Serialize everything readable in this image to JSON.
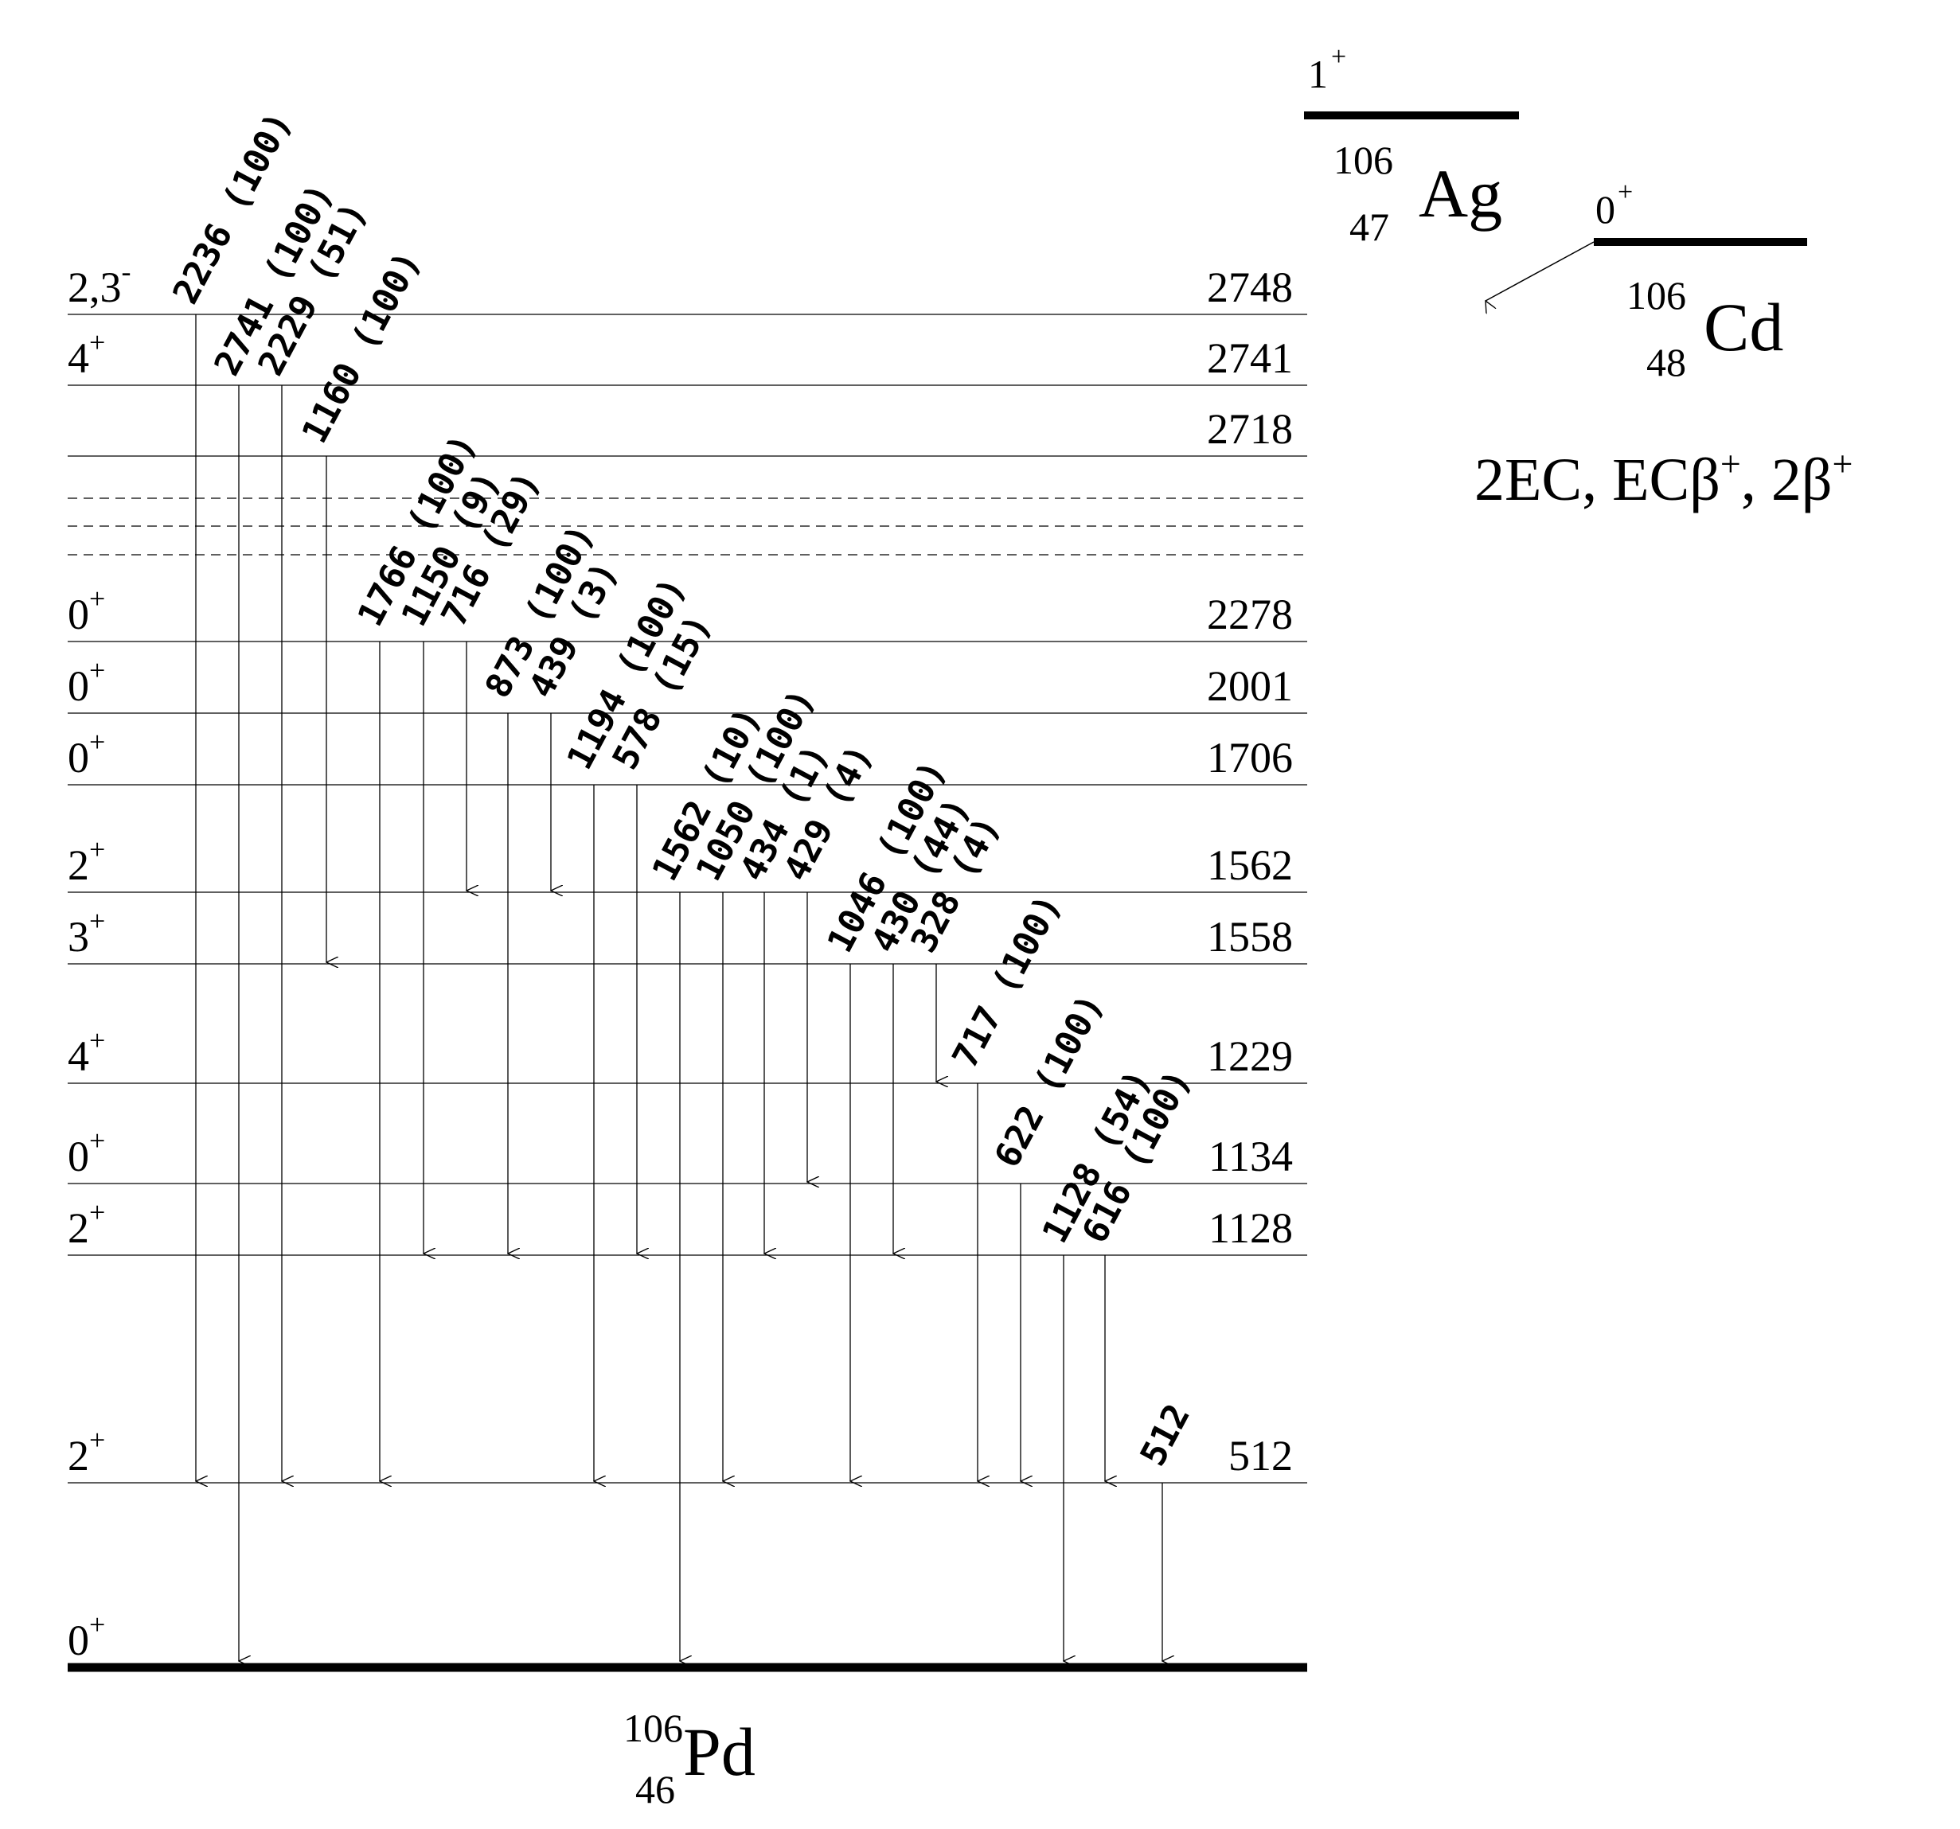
{
  "levels": [
    {
      "energy": "2748",
      "spin": "2,3",
      "spin_sup": "-",
      "style": "solid"
    },
    {
      "energy": "2741",
      "spin": "4",
      "spin_sup": "+",
      "style": "solid"
    },
    {
      "energy": "2718",
      "spin": "",
      "spin_sup": "",
      "style": "solid"
    },
    {
      "energy": "",
      "spin": "",
      "spin_sup": "",
      "style": "dashed"
    },
    {
      "energy": "",
      "spin": "",
      "spin_sup": "",
      "style": "dashed"
    },
    {
      "energy": "",
      "spin": "",
      "spin_sup": "",
      "style": "dashed"
    },
    {
      "energy": "2278",
      "spin": "0",
      "spin_sup": "+",
      "style": "solid"
    },
    {
      "energy": "2001",
      "spin": "0",
      "spin_sup": "+",
      "style": "solid"
    },
    {
      "energy": "1706",
      "spin": "0",
      "spin_sup": "+",
      "style": "solid"
    },
    {
      "energy": "1562",
      "spin": "2",
      "spin_sup": "+",
      "style": "solid"
    },
    {
      "energy": "1558",
      "spin": "3",
      "spin_sup": "+",
      "style": "solid"
    },
    {
      "energy": "1229",
      "spin": "4",
      "spin_sup": "+",
      "style": "solid"
    },
    {
      "energy": "1134",
      "spin": "0",
      "spin_sup": "+",
      "style": "solid"
    },
    {
      "energy": "1128",
      "spin": "2",
      "spin_sup": "+",
      "style": "solid"
    },
    {
      "energy": "512",
      "spin": "2",
      "spin_sup": "+",
      "style": "solid"
    },
    {
      "energy": "",
      "spin": "0",
      "spin_sup": "+",
      "style": "ground"
    }
  ],
  "transitions": [
    {
      "label": "2236 (100)",
      "from": "2748",
      "to": "512"
    },
    {
      "label": "2741 (100)",
      "from": "2741",
      "to": "0"
    },
    {
      "label": "2229 (51)",
      "from": "2741",
      "to": "512"
    },
    {
      "label": "1160 (100)",
      "from": "2718",
      "to": "1558"
    },
    {
      "label": "1766 (100)",
      "from": "2278",
      "to": "512"
    },
    {
      "label": "1150 (9)",
      "from": "2278",
      "to": "1128"
    },
    {
      "label": "716 (29)",
      "from": "2278",
      "to": "1562"
    },
    {
      "label": "873 (100)",
      "from": "2001",
      "to": "1128"
    },
    {
      "label": "439 (3)",
      "from": "2001",
      "to": "1562"
    },
    {
      "label": "1194 (100)",
      "from": "1706",
      "to": "512"
    },
    {
      "label": "578 (15)",
      "from": "1706",
      "to": "1128"
    },
    {
      "label": "1562 (10)",
      "from": "1562",
      "to": "0"
    },
    {
      "label": "1050 (100)",
      "from": "1562",
      "to": "512"
    },
    {
      "label": "434 (1)",
      "from": "1562",
      "to": "1128"
    },
    {
      "label": "429 (4)",
      "from": "1562",
      "to": "1134"
    },
    {
      "label": "1046 (100)",
      "from": "1558",
      "to": "512"
    },
    {
      "label": "430 (44)",
      "from": "1558",
      "to": "1128"
    },
    {
      "label": "328 (4)",
      "from": "1558",
      "to": "1229"
    },
    {
      "label": "717 (100)",
      "from": "1229",
      "to": "512"
    },
    {
      "label": "622 (100)",
      "from": "1134",
      "to": "512"
    },
    {
      "label": "1128 (54)",
      "from": "1128",
      "to": "0"
    },
    {
      "label": "616 (100)",
      "from": "1128",
      "to": "512"
    },
    {
      "label": "512",
      "from": "512",
      "to": "0"
    }
  ],
  "daughter": {
    "mass": "106",
    "z": "46",
    "symbol": "Pd"
  },
  "ag": {
    "mass": "106",
    "z": "47",
    "symbol": "Ag",
    "spin": "1",
    "spin_sup": "+"
  },
  "cd": {
    "mass": "106",
    "z": "48",
    "symbol": "Cd",
    "spin": "0",
    "spin_sup": "+"
  },
  "decay_modes": {
    "ec2": "2EC, EC",
    "beta": "β",
    "plus1": "+",
    "sep": ", 2",
    "beta2": "β",
    "plus2": "+"
  }
}
